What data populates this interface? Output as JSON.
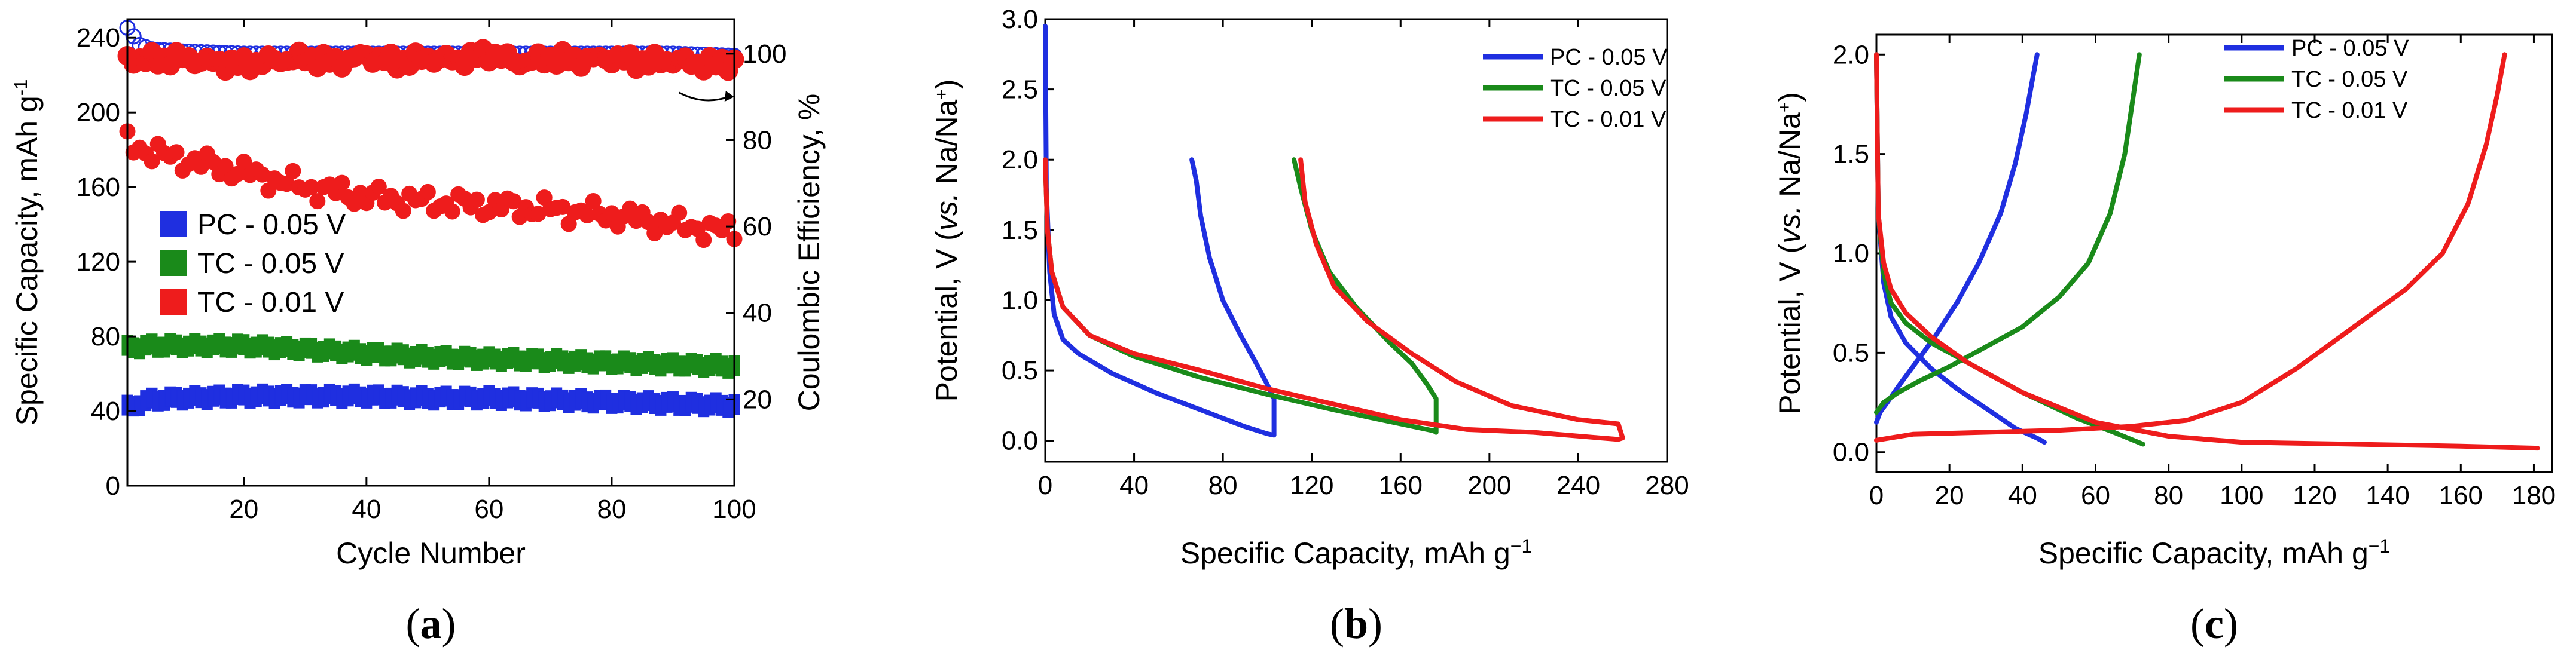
{
  "figure": {
    "panel_labels": [
      "a",
      "b",
      "c"
    ],
    "colors": {
      "PC - 0.05 V": "#1f2fe0",
      "TC - 0.05 V": "#1a8a1a",
      "TC - 0.01 V": "#ee1c1c"
    }
  },
  "chart_data": [
    {
      "id": "a",
      "type": "scatter",
      "xlabel": "Cycle Number",
      "ylabel": "Specific Capacity, mAh g",
      "ylabel_sup": "-1",
      "y2label": "Coulombic Efficiency, %",
      "xlim": [
        1,
        100
      ],
      "ylim": [
        0,
        250
      ],
      "y2lim": [
        0,
        108
      ],
      "xticks": [
        "20",
        "40",
        "60",
        "80",
        "100"
      ],
      "yticks": [
        "0",
        "40",
        "80",
        "120",
        "160",
        "200",
        "240"
      ],
      "y2ticks": [
        "20",
        "40",
        "60",
        "80",
        "100"
      ],
      "legend_position": "center-left",
      "series": [
        {
          "name": "PC - 0.05 V",
          "axis": "left",
          "marker": "square",
          "x": [
            1,
            5,
            10,
            20,
            30,
            40,
            50,
            60,
            70,
            80,
            90,
            100
          ],
          "values": [
            42,
            46,
            47,
            48,
            48,
            48,
            47,
            47,
            46,
            45,
            44,
            43
          ]
        },
        {
          "name": "TC - 0.05 V",
          "axis": "left",
          "marker": "square",
          "x": [
            1,
            5,
            10,
            20,
            30,
            40,
            50,
            60,
            70,
            80,
            90,
            100
          ],
          "values": [
            74,
            75,
            75,
            75,
            73,
            71,
            69,
            68,
            67,
            66,
            65,
            64
          ]
        },
        {
          "name": "TC - 0.01 V",
          "axis": "left",
          "marker": "star",
          "x": [
            1,
            5,
            10,
            20,
            30,
            40,
            50,
            60,
            70,
            80,
            90,
            100
          ],
          "values": [
            185,
            178,
            175,
            168,
            160,
            155,
            152,
            150,
            148,
            145,
            140,
            136
          ]
        },
        {
          "name": "PC - 0.05 V CE",
          "axis": "right",
          "marker": "circle",
          "x": [
            1,
            3,
            5,
            10,
            20,
            30,
            40,
            50,
            60,
            70,
            80,
            90,
            100
          ],
          "values": [
            106,
            102,
            101,
            100.5,
            100,
            100,
            100,
            100,
            100,
            100,
            100,
            100,
            99.5
          ]
        },
        {
          "name": "TC - 0.01 V CE",
          "axis": "right",
          "marker": "circle",
          "x": [
            1,
            5,
            10,
            15,
            20,
            25,
            30,
            35,
            40,
            45,
            50,
            55,
            60,
            65,
            70,
            75,
            80,
            85,
            90,
            95,
            100
          ],
          "values": [
            99,
            98.5,
            99,
            98,
            97.5,
            98.5,
            99,
            98,
            99.5,
            98,
            99,
            98.5,
            100,
            98,
            99,
            98.5,
            99,
            98,
            98.5,
            97.5,
            98
          ]
        }
      ]
    },
    {
      "id": "b",
      "type": "line",
      "xlabel": "Specific Capacity, mAh g",
      "xlabel_sup": "−1",
      "ylabel_pre": "Potential, V (",
      "ylabel_it": "vs.",
      "ylabel_post": " Na/Na",
      "ylabel_sup": "+",
      "ylabel_end": ")",
      "xlim": [
        0,
        280
      ],
      "ylim": [
        -0.15,
        3.0
      ],
      "xticks": [
        "0",
        "40",
        "80",
        "120",
        "160",
        "200",
        "240",
        "280"
      ],
      "yticks": [
        "0.0",
        "0.5",
        "1.0",
        "1.5",
        "2.0",
        "2.5",
        "3.0"
      ],
      "legend_position": "top-right",
      "series": [
        {
          "name": "PC - 0.05 V",
          "x": [
            0,
            0.5,
            2,
            4,
            8,
            15,
            30,
            50,
            70,
            90,
            100,
            103,
            103,
            100,
            95,
            88,
            80,
            74,
            70,
            68,
            66
          ],
          "y": [
            2.95,
            1.8,
            1.2,
            0.9,
            0.72,
            0.62,
            0.48,
            0.34,
            0.22,
            0.1,
            0.05,
            0.04,
            0.3,
            0.4,
            0.55,
            0.75,
            1.0,
            1.3,
            1.6,
            1.85,
            2.0
          ]
        },
        {
          "name": "TC - 0.05 V",
          "x": [
            0,
            1,
            3,
            8,
            20,
            40,
            70,
            100,
            130,
            160,
            175,
            176,
            176,
            172,
            165,
            155,
            140,
            128,
            120,
            115,
            112
          ],
          "y": [
            2.0,
            1.5,
            1.2,
            0.95,
            0.75,
            0.6,
            0.45,
            0.33,
            0.22,
            0.12,
            0.07,
            0.06,
            0.3,
            0.4,
            0.55,
            0.7,
            0.95,
            1.2,
            1.5,
            1.8,
            2.0
          ]
        },
        {
          "name": "TC - 0.01 V",
          "x": [
            0,
            1,
            3,
            8,
            20,
            40,
            70,
            100,
            130,
            160,
            190,
            220,
            250,
            258,
            260,
            258,
            240,
            210,
            185,
            165,
            145,
            130,
            122,
            117,
            115
          ],
          "y": [
            2.0,
            1.5,
            1.2,
            0.95,
            0.75,
            0.62,
            0.5,
            0.37,
            0.26,
            0.15,
            0.08,
            0.06,
            0.02,
            0.01,
            0.02,
            0.12,
            0.15,
            0.25,
            0.42,
            0.62,
            0.85,
            1.1,
            1.4,
            1.7,
            2.0
          ]
        }
      ]
    },
    {
      "id": "c",
      "type": "line",
      "xlabel": "Specific Capacity, mAh g",
      "xlabel_sup": "−1",
      "ylabel_pre": "Potential, V (",
      "ylabel_it": "vs.",
      "ylabel_post": " Na/Na",
      "ylabel_sup": "+",
      "ylabel_end": ")",
      "xlim": [
        0,
        185
      ],
      "ylim": [
        -0.1,
        2.1
      ],
      "xticks": [
        "0",
        "20",
        "40",
        "60",
        "80",
        "100",
        "120",
        "140",
        "160",
        "180"
      ],
      "yticks": [
        "0.0",
        "0.5",
        "1.0",
        "1.5",
        "2.0"
      ],
      "legend_position": "top-right",
      "series": [
        {
          "name": "PC - 0.05 V",
          "x": [
            0,
            0.5,
            2,
            4,
            8,
            15,
            22,
            30,
            38,
            44,
            46
          ],
          "y": [
            2.0,
            1.2,
            0.85,
            0.68,
            0.55,
            0.42,
            0.32,
            0.22,
            0.12,
            0.07,
            0.05
          ],
          "x2": [
            0,
            1,
            3,
            6,
            10,
            16,
            22,
            28,
            34,
            38,
            41,
            43,
            44
          ],
          "y2": [
            0.15,
            0.2,
            0.25,
            0.33,
            0.43,
            0.58,
            0.75,
            0.95,
            1.2,
            1.45,
            1.7,
            1.9,
            2.0
          ]
        },
        {
          "name": "TC - 0.05 V",
          "x": [
            0,
            0.5,
            2,
            4,
            8,
            15,
            25,
            40,
            55,
            65,
            73
          ],
          "y": [
            2.0,
            1.2,
            0.9,
            0.75,
            0.65,
            0.55,
            0.45,
            0.3,
            0.17,
            0.1,
            0.04
          ],
          "x2": [
            0,
            2,
            6,
            12,
            20,
            30,
            40,
            50,
            58,
            64,
            68,
            70,
            72
          ],
          "y2": [
            0.2,
            0.25,
            0.3,
            0.36,
            0.43,
            0.53,
            0.63,
            0.78,
            0.95,
            1.2,
            1.5,
            1.75,
            2.0
          ]
        },
        {
          "name": "TC - 0.01 V",
          "x": [
            0,
            0.5,
            2,
            4,
            8,
            15,
            25,
            40,
            60,
            80,
            100,
            130,
            160,
            181
          ],
          "y": [
            2.0,
            1.2,
            0.95,
            0.82,
            0.7,
            0.58,
            0.45,
            0.3,
            0.15,
            0.08,
            0.05,
            0.04,
            0.03,
            0.02
          ],
          "x2": [
            0,
            10,
            30,
            50,
            70,
            85,
            100,
            115,
            130,
            145,
            155,
            162,
            167,
            170,
            172
          ],
          "y2": [
            0.06,
            0.09,
            0.1,
            0.11,
            0.13,
            0.16,
            0.25,
            0.42,
            0.62,
            0.82,
            1.0,
            1.25,
            1.55,
            1.8,
            2.0
          ]
        }
      ]
    }
  ]
}
